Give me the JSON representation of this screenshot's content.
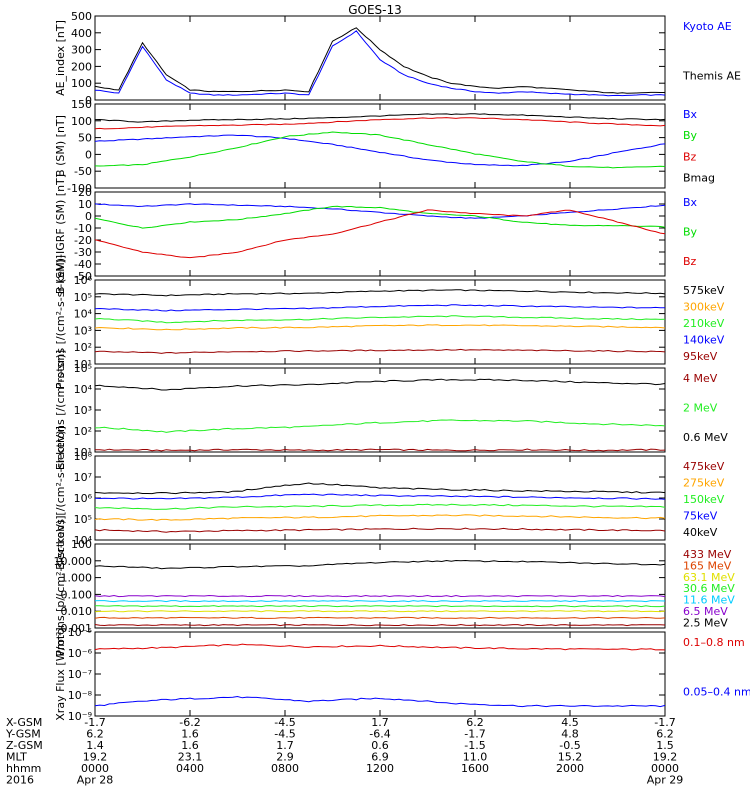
{
  "title": "GOES-13",
  "colors": {
    "black": "#000000",
    "blue": "#0000ff",
    "red": "#dd0000",
    "green": "#00dd00",
    "orange": "#ffa500",
    "lightgreen": "#22ee22",
    "darkred": "#990000",
    "cyan": "#00ccff",
    "yellow": "#e0e000",
    "purple": "#8800cc"
  },
  "x_ticks": [
    "0000",
    "0400",
    "0800",
    "1200",
    "1600",
    "2000",
    "0000"
  ],
  "chart_data": [
    {
      "type": "line",
      "ylabel": "AE_index [nT]",
      "yscale": "linear",
      "ylim": [
        0,
        500
      ],
      "yticks": [
        "500",
        "400",
        "300",
        "200",
        "100",
        "0"
      ],
      "series": [
        {
          "name": "Kyoto AE",
          "color": "#0000ff",
          "x": [
            0,
            1,
            2,
            3,
            4,
            5,
            6,
            7,
            8,
            9,
            10,
            11,
            12,
            13,
            14,
            15,
            16,
            17,
            18,
            19,
            20,
            21,
            22,
            23,
            24
          ],
          "values": [
            60,
            40,
            320,
            120,
            40,
            30,
            30,
            35,
            40,
            30,
            320,
            410,
            240,
            150,
            100,
            70,
            50,
            40,
            50,
            40,
            35,
            30,
            25,
            30,
            30
          ]
        },
        {
          "name": "Themis AE",
          "color": "#000000",
          "x": [
            0,
            1,
            2,
            3,
            4,
            5,
            6,
            7,
            8,
            9,
            10,
            11,
            12,
            13,
            14,
            15,
            16,
            17,
            18,
            19,
            20,
            21,
            22,
            23,
            24
          ],
          "values": [
            80,
            60,
            340,
            150,
            60,
            50,
            50,
            55,
            60,
            50,
            350,
            430,
            300,
            200,
            140,
            100,
            80,
            70,
            80,
            70,
            60,
            50,
            40,
            45,
            45
          ]
        }
      ]
    },
    {
      "type": "line",
      "ylabel": "B (SM) [nT]",
      "yscale": "linear",
      "ylim": [
        -120,
        150
      ],
      "yticks": [
        "150",
        "100",
        "50",
        "0",
        "-50",
        "-100"
      ],
      "series": [
        {
          "name": "Bx",
          "color": "#0000ff",
          "x": [
            0,
            2,
            4,
            6,
            8,
            10,
            12,
            14,
            16,
            18,
            20,
            22,
            24
          ],
          "values": [
            30,
            37,
            45,
            50,
            40,
            20,
            -5,
            -30,
            -45,
            -48,
            -35,
            -5,
            22
          ]
        },
        {
          "name": "By",
          "color": "#00dd00",
          "x": [
            0,
            2,
            4,
            6,
            8,
            10,
            12,
            14,
            16,
            18,
            20,
            22,
            24
          ],
          "values": [
            -50,
            -45,
            -20,
            10,
            45,
            60,
            50,
            20,
            -10,
            -35,
            -50,
            -55,
            -50
          ]
        },
        {
          "name": "Bz",
          "color": "#dd0000",
          "x": [
            0,
            2,
            4,
            6,
            8,
            10,
            12,
            14,
            16,
            18,
            20,
            22,
            24
          ],
          "values": [
            70,
            75,
            80,
            82,
            85,
            92,
            100,
            105,
            105,
            100,
            92,
            85,
            80
          ]
        },
        {
          "name": "Bmag",
          "color": "#000000",
          "x": [
            0,
            2,
            4,
            6,
            8,
            10,
            12,
            14,
            16,
            18,
            20,
            22,
            24
          ],
          "values": [
            100,
            92,
            98,
            100,
            102,
            106,
            112,
            117,
            118,
            114,
            108,
            102,
            100
          ]
        }
      ]
    },
    {
      "type": "line",
      "ylabel": "B (SM)-IGRF (SM) [nT]",
      "yscale": "linear",
      "ylim": [
        -50,
        20
      ],
      "yticks": [
        "20",
        "10",
        "0",
        "-10",
        "-20",
        "-30",
        "-40",
        "-50"
      ],
      "series": [
        {
          "name": "Bx",
          "color": "#0000ff",
          "x": [
            0,
            2,
            4,
            6,
            8,
            10,
            12,
            14,
            16,
            18,
            20,
            22,
            24
          ],
          "values": [
            10,
            8,
            10,
            9,
            8,
            6,
            3,
            0,
            -2,
            0,
            3,
            6,
            9
          ]
        },
        {
          "name": "By",
          "color": "#00dd00",
          "x": [
            0,
            2,
            4,
            6,
            8,
            10,
            12,
            14,
            16,
            18,
            20,
            22,
            24
          ],
          "values": [
            -2,
            -10,
            -5,
            -3,
            2,
            8,
            7,
            2,
            0,
            -5,
            -8,
            -8,
            -9
          ]
        },
        {
          "name": "Bz",
          "color": "#dd0000",
          "x": [
            0,
            2,
            4,
            6,
            8,
            10,
            12,
            14,
            16,
            18,
            20,
            22,
            24
          ],
          "values": [
            -20,
            -30,
            -35,
            -30,
            -20,
            -15,
            -5,
            5,
            2,
            0,
            5,
            -5,
            -15
          ]
        }
      ]
    },
    {
      "type": "line",
      "ylabel": "Protons [/(cm²-s-sr-keV)]",
      "yscale": "log",
      "ylim": [
        10,
        1000000
      ],
      "yticks": [
        "10⁶",
        "10⁵",
        "10⁴",
        "10³",
        "10²",
        "10¹"
      ],
      "series": [
        {
          "name": "575keV",
          "color": "#000000",
          "x": [
            0,
            3,
            6,
            9,
            12,
            15,
            18,
            21,
            24
          ],
          "values": [
            150000,
            120000,
            150000,
            160000,
            220000,
            250000,
            220000,
            180000,
            160000
          ]
        },
        {
          "name": "300keV",
          "color": "#ffa500",
          "x": [
            0,
            3,
            6,
            9,
            12,
            15,
            18,
            21,
            24
          ],
          "values": [
            1500,
            1100,
            1400,
            1500,
            1900,
            2100,
            1900,
            1700,
            1500
          ]
        },
        {
          "name": "210keV",
          "color": "#22ee22",
          "x": [
            0,
            3,
            6,
            9,
            12,
            15,
            18,
            21,
            24
          ],
          "values": [
            5000,
            3000,
            4000,
            4500,
            6000,
            7000,
            6000,
            5000,
            4500
          ]
        },
        {
          "name": "140keV",
          "color": "#0000ff",
          "x": [
            0,
            3,
            6,
            9,
            12,
            15,
            18,
            21,
            24
          ],
          "values": [
            20000,
            15000,
            18000,
            20000,
            27000,
            32000,
            28000,
            24000,
            22000
          ]
        },
        {
          "name": "95keV",
          "color": "#990000",
          "x": [
            0,
            3,
            6,
            9,
            12,
            15,
            18,
            21,
            24
          ],
          "values": [
            55,
            45,
            55,
            60,
            65,
            70,
            65,
            60,
            55
          ]
        }
      ]
    },
    {
      "type": "line",
      "ylabel": "Electrons [/(cm²-s-sr)]",
      "yscale": "log",
      "ylim": [
        10,
        100000
      ],
      "yticks": [
        "10⁵",
        "10⁴",
        "10³",
        "10²",
        "10¹"
      ],
      "series": [
        {
          "name": "4 MeV",
          "color": "#990000",
          "x": [
            0,
            3,
            6,
            9,
            12,
            15,
            18,
            21,
            24
          ],
          "values": [
            13,
            12,
            13,
            12,
            13,
            12,
            13,
            12,
            13
          ]
        },
        {
          "name": "2 MeV",
          "color": "#22ee22",
          "x": [
            0,
            3,
            6,
            9,
            12,
            15,
            18,
            21,
            24
          ],
          "values": [
            150,
            90,
            130,
            160,
            250,
            320,
            300,
            220,
            180
          ]
        },
        {
          "name": "0.6 MeV",
          "color": "#000000",
          "x": [
            0,
            3,
            6,
            9,
            12,
            15,
            18,
            21,
            24
          ],
          "values": [
            15000,
            9000,
            14000,
            16000,
            23000,
            28000,
            26000,
            20000,
            17000
          ]
        }
      ]
    },
    {
      "type": "line",
      "ylabel": "Electrons [/(cm²-s-sr-keV)]",
      "yscale": "log",
      "ylim": [
        10000,
        100000000
      ],
      "yticks": [
        "10⁸",
        "10⁷",
        "10⁶",
        "10⁵",
        "10⁴"
      ],
      "series": [
        {
          "name": "475keV",
          "color": "#990000",
          "x": [
            0,
            3,
            6,
            9,
            12,
            15,
            18,
            21,
            24
          ],
          "values": [
            30000,
            25000,
            28000,
            30000,
            33000,
            35000,
            33000,
            30000,
            28000
          ]
        },
        {
          "name": "275keV",
          "color": "#ffa500",
          "x": [
            0,
            3,
            6,
            9,
            12,
            15,
            18,
            21,
            24
          ],
          "values": [
            100000,
            90000,
            110000,
            120000,
            140000,
            150000,
            140000,
            120000,
            110000
          ]
        },
        {
          "name": "150keV",
          "color": "#22ee22",
          "x": [
            0,
            3,
            6,
            9,
            12,
            15,
            18,
            21,
            24
          ],
          "values": [
            350000,
            300000,
            380000,
            400000,
            450000,
            480000,
            450000,
            400000,
            380000
          ]
        },
        {
          "name": "75keV",
          "color": "#0000ff",
          "x": [
            0,
            3,
            6,
            9,
            12,
            15,
            18,
            21,
            24
          ],
          "values": [
            1000000,
            900000,
            1100000,
            1500000,
            1300000,
            1200000,
            1100000,
            1000000,
            900000
          ]
        },
        {
          "name": "40keV",
          "color": "#000000",
          "x": [
            0,
            3,
            6,
            9,
            12,
            15,
            18,
            21,
            24
          ],
          "values": [
            1800000,
            1700000,
            2000000,
            5000000,
            3000000,
            2500000,
            2200000,
            2000000,
            1800000
          ]
        }
      ]
    },
    {
      "type": "line",
      "ylabel": "Protons [p/(cm²-s-sr-keV)]",
      "yscale": "log",
      "ylim": [
        0.001,
        100
      ],
      "yticks": [
        "100",
        "10.000",
        "1.000",
        "0.100",
        "0.010",
        "0.001"
      ],
      "series": [
        {
          "name": "433 MeV",
          "color": "#990000",
          "x": [
            0,
            3,
            6,
            9,
            12,
            15,
            18,
            21,
            24
          ],
          "values": [
            0.0015,
            0.0015,
            0.0015,
            0.0015,
            0.0015,
            0.0015,
            0.0015,
            0.0015,
            0.0015
          ]
        },
        {
          "name": "165 MeV",
          "color": "#dd4400",
          "x": [
            0,
            3,
            6,
            9,
            12,
            15,
            18,
            21,
            24
          ],
          "values": [
            0.004,
            0.004,
            0.004,
            0.004,
            0.004,
            0.004,
            0.004,
            0.004,
            0.004
          ]
        },
        {
          "name": "63.1 MeV",
          "color": "#e0e000",
          "x": [
            0,
            3,
            6,
            9,
            12,
            15,
            18,
            21,
            24
          ],
          "values": [
            0.01,
            0.01,
            0.01,
            0.01,
            0.01,
            0.01,
            0.01,
            0.01,
            0.01
          ]
        },
        {
          "name": "30.6 MeV",
          "color": "#22ee22",
          "x": [
            0,
            3,
            6,
            9,
            12,
            15,
            18,
            21,
            24
          ],
          "values": [
            0.02,
            0.02,
            0.02,
            0.02,
            0.02,
            0.02,
            0.02,
            0.02,
            0.02
          ]
        },
        {
          "name": "11.6 MeV",
          "color": "#00ccff",
          "x": [
            0,
            3,
            6,
            9,
            12,
            15,
            18,
            21,
            24
          ],
          "values": [
            0.04,
            0.04,
            0.04,
            0.04,
            0.04,
            0.04,
            0.04,
            0.04,
            0.04
          ]
        },
        {
          "name": "6.5 MeV",
          "color": "#8800cc",
          "x": [
            0,
            3,
            6,
            9,
            12,
            15,
            18,
            21,
            24
          ],
          "values": [
            0.08,
            0.08,
            0.08,
            0.08,
            0.08,
            0.08,
            0.08,
            0.08,
            0.08
          ]
        },
        {
          "name": "2.5 MeV",
          "color": "#000000",
          "x": [
            0,
            3,
            6,
            9,
            12,
            15,
            18,
            21,
            24
          ],
          "values": [
            5,
            3.5,
            4.5,
            5,
            8,
            10,
            9,
            7,
            6
          ]
        }
      ]
    },
    {
      "type": "line",
      "ylabel": "Xray Flux [W/m²]",
      "yscale": "log",
      "ylim": [
        1e-09,
        1e-05
      ],
      "yticks": [
        "10⁻⁵",
        "10⁻⁶",
        "10⁻⁷",
        "10⁻⁸",
        "10⁻⁹"
      ],
      "series": [
        {
          "name": "0.1–0.8 nm",
          "color": "#dd0000",
          "x": [
            0,
            3,
            6,
            9,
            12,
            15,
            18,
            21,
            24
          ],
          "values": [
            1.5e-06,
            1.8e-06,
            2.5e-06,
            2e-06,
            2.2e-06,
            1.8e-06,
            1.6e-06,
            1.5e-06,
            1.5e-06
          ]
        },
        {
          "name": "0.05–0.4 nm",
          "color": "#0000ff",
          "x": [
            0,
            3,
            6,
            9,
            12,
            15,
            18,
            21,
            24
          ],
          "values": [
            3e-09,
            6e-09,
            8e-09,
            5e-09,
            7e-09,
            4e-09,
            3e-09,
            3e-09,
            3e-09
          ]
        }
      ]
    }
  ],
  "axis_table": {
    "rows": [
      {
        "label": "X-GSM",
        "values": [
          "-1.7",
          "-6.2",
          "-4.5",
          "1.7",
          "6.2",
          "4.5",
          "-1.7"
        ]
      },
      {
        "label": "Y-GSM",
        "values": [
          "6.2",
          "1.6",
          "-4.5",
          "-6.4",
          "-1.7",
          "4.8",
          "6.2"
        ]
      },
      {
        "label": "Z-GSM",
        "values": [
          "1.4",
          "1.6",
          "1.7",
          "0.6",
          "-1.5",
          "-0.5",
          "1.5"
        ]
      },
      {
        "label": "MLT",
        "values": [
          "19.2",
          "23.1",
          "2.9",
          "6.9",
          "11.0",
          "15.2",
          "19.2"
        ]
      },
      {
        "label": "hhmm",
        "values": [
          "0000",
          "0400",
          "0800",
          "1200",
          "1600",
          "2000",
          "0000"
        ]
      },
      {
        "label": "2016",
        "values": [
          "Apr 28",
          "",
          "",
          "",
          "",
          "",
          "Apr 29"
        ]
      }
    ]
  }
}
